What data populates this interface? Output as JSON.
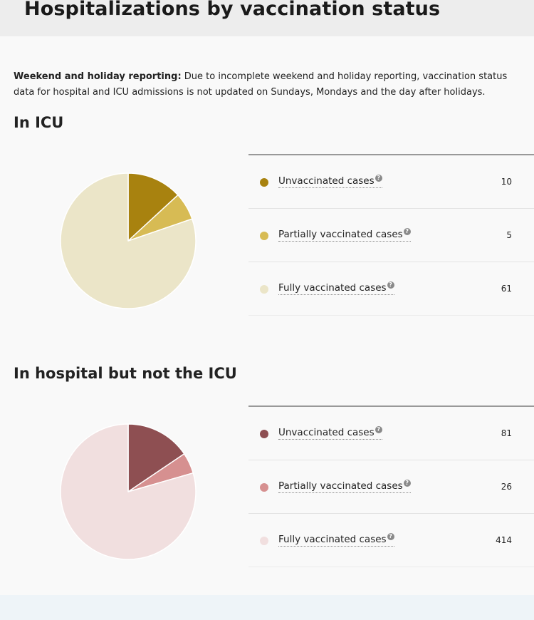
{
  "title": "Hospitalizations by vaccination status",
  "note": {
    "bold": "Weekend and holiday reporting:",
    "text": " Due to incomplete weekend and holiday reporting, vaccination status data for hospital and ICU admissions is not updated on Sundays, Mondays and the day after holidays."
  },
  "help_glyph": "?",
  "sections": [
    {
      "title": "In ICU",
      "rows": [
        {
          "label": "Unvaccinated cases",
          "value": "10",
          "color": "#a8820f"
        },
        {
          "label": "Partially vaccinated cases",
          "value": "5",
          "color": "#d7bb54"
        },
        {
          "label": "Fully vaccinated cases",
          "value": "61",
          "color": "#ebe5c8"
        }
      ]
    },
    {
      "title": "In hospital but not the ICU",
      "rows": [
        {
          "label": "Unvaccinated cases",
          "value": "81",
          "color": "#8e4f52"
        },
        {
          "label": "Partially vaccinated cases",
          "value": "26",
          "color": "#d69090"
        },
        {
          "label": "Fully vaccinated cases",
          "value": "414",
          "color": "#f1dfdf"
        }
      ]
    }
  ],
  "chart_data": [
    {
      "type": "pie",
      "title": "In ICU",
      "categories": [
        "Unvaccinated cases",
        "Partially vaccinated cases",
        "Fully vaccinated cases"
      ],
      "values": [
        10,
        5,
        61
      ],
      "colors": [
        "#a8820f",
        "#d7bb54",
        "#ebe5c8"
      ]
    },
    {
      "type": "pie",
      "title": "In hospital but not the ICU",
      "categories": [
        "Unvaccinated cases",
        "Partially vaccinated cases",
        "Fully vaccinated cases"
      ],
      "values": [
        81,
        26,
        414
      ],
      "colors": [
        "#8e4f52",
        "#d69090",
        "#f1dfdf"
      ]
    }
  ]
}
